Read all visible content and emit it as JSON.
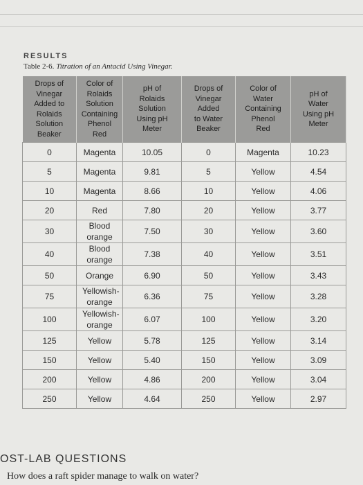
{
  "header": {
    "section": "RESULTS"
  },
  "table": {
    "caption_label": "Table 2-6.",
    "caption_title": "Titration of an Antacid Using Vinegar.",
    "columns": [
      [
        "Drops of",
        "Vinegar",
        "Added to",
        "Rolaids",
        "Solution",
        "Beaker"
      ],
      [
        "Color of",
        "Rolaids",
        "Solution",
        "Containing",
        "Phenol",
        "Red"
      ],
      [
        "pH of",
        "Rolaids",
        "Solution",
        "Using pH",
        "Meter"
      ],
      [
        "Drops of",
        "Vinegar",
        "Added",
        "to Water",
        "Beaker"
      ],
      [
        "Color of",
        "Water",
        "Containing",
        "Phenol",
        "Red"
      ],
      [
        "pH of",
        "Water",
        "Using pH",
        "Meter"
      ]
    ],
    "rows": [
      [
        "0",
        "Magenta",
        "10.05",
        "0",
        "Magenta",
        "10.23"
      ],
      [
        "5",
        "Magenta",
        "9.81",
        "5",
        "Yellow",
        "4.54"
      ],
      [
        "10",
        "Magenta",
        "8.66",
        "10",
        "Yellow",
        "4.06"
      ],
      [
        "20",
        "Red",
        "7.80",
        "20",
        "Yellow",
        "3.77"
      ],
      [
        "30",
        "Blood orange",
        "7.50",
        "30",
        "Yellow",
        "3.60"
      ],
      [
        "40",
        "Blood orange",
        "7.38",
        "40",
        "Yellow",
        "3.51"
      ],
      [
        "50",
        "Orange",
        "6.90",
        "50",
        "Yellow",
        "3.43"
      ],
      [
        "75",
        "Yellowish-orange",
        "6.36",
        "75",
        "Yellow",
        "3.28"
      ],
      [
        "100",
        "Yellowish-orange",
        "6.07",
        "100",
        "Yellow",
        "3.20"
      ],
      [
        "125",
        "Yellow",
        "5.78",
        "125",
        "Yellow",
        "3.14"
      ],
      [
        "150",
        "Yellow",
        "5.40",
        "150",
        "Yellow",
        "3.09"
      ],
      [
        "200",
        "Yellow",
        "4.86",
        "200",
        "Yellow",
        "3.04"
      ],
      [
        "250",
        "Yellow",
        "4.64",
        "250",
        "Yellow",
        "2.97"
      ]
    ]
  },
  "post_lab": {
    "heading": "OST-LAB QUESTIONS",
    "question": "How does a raft spider manage to walk on water?"
  }
}
